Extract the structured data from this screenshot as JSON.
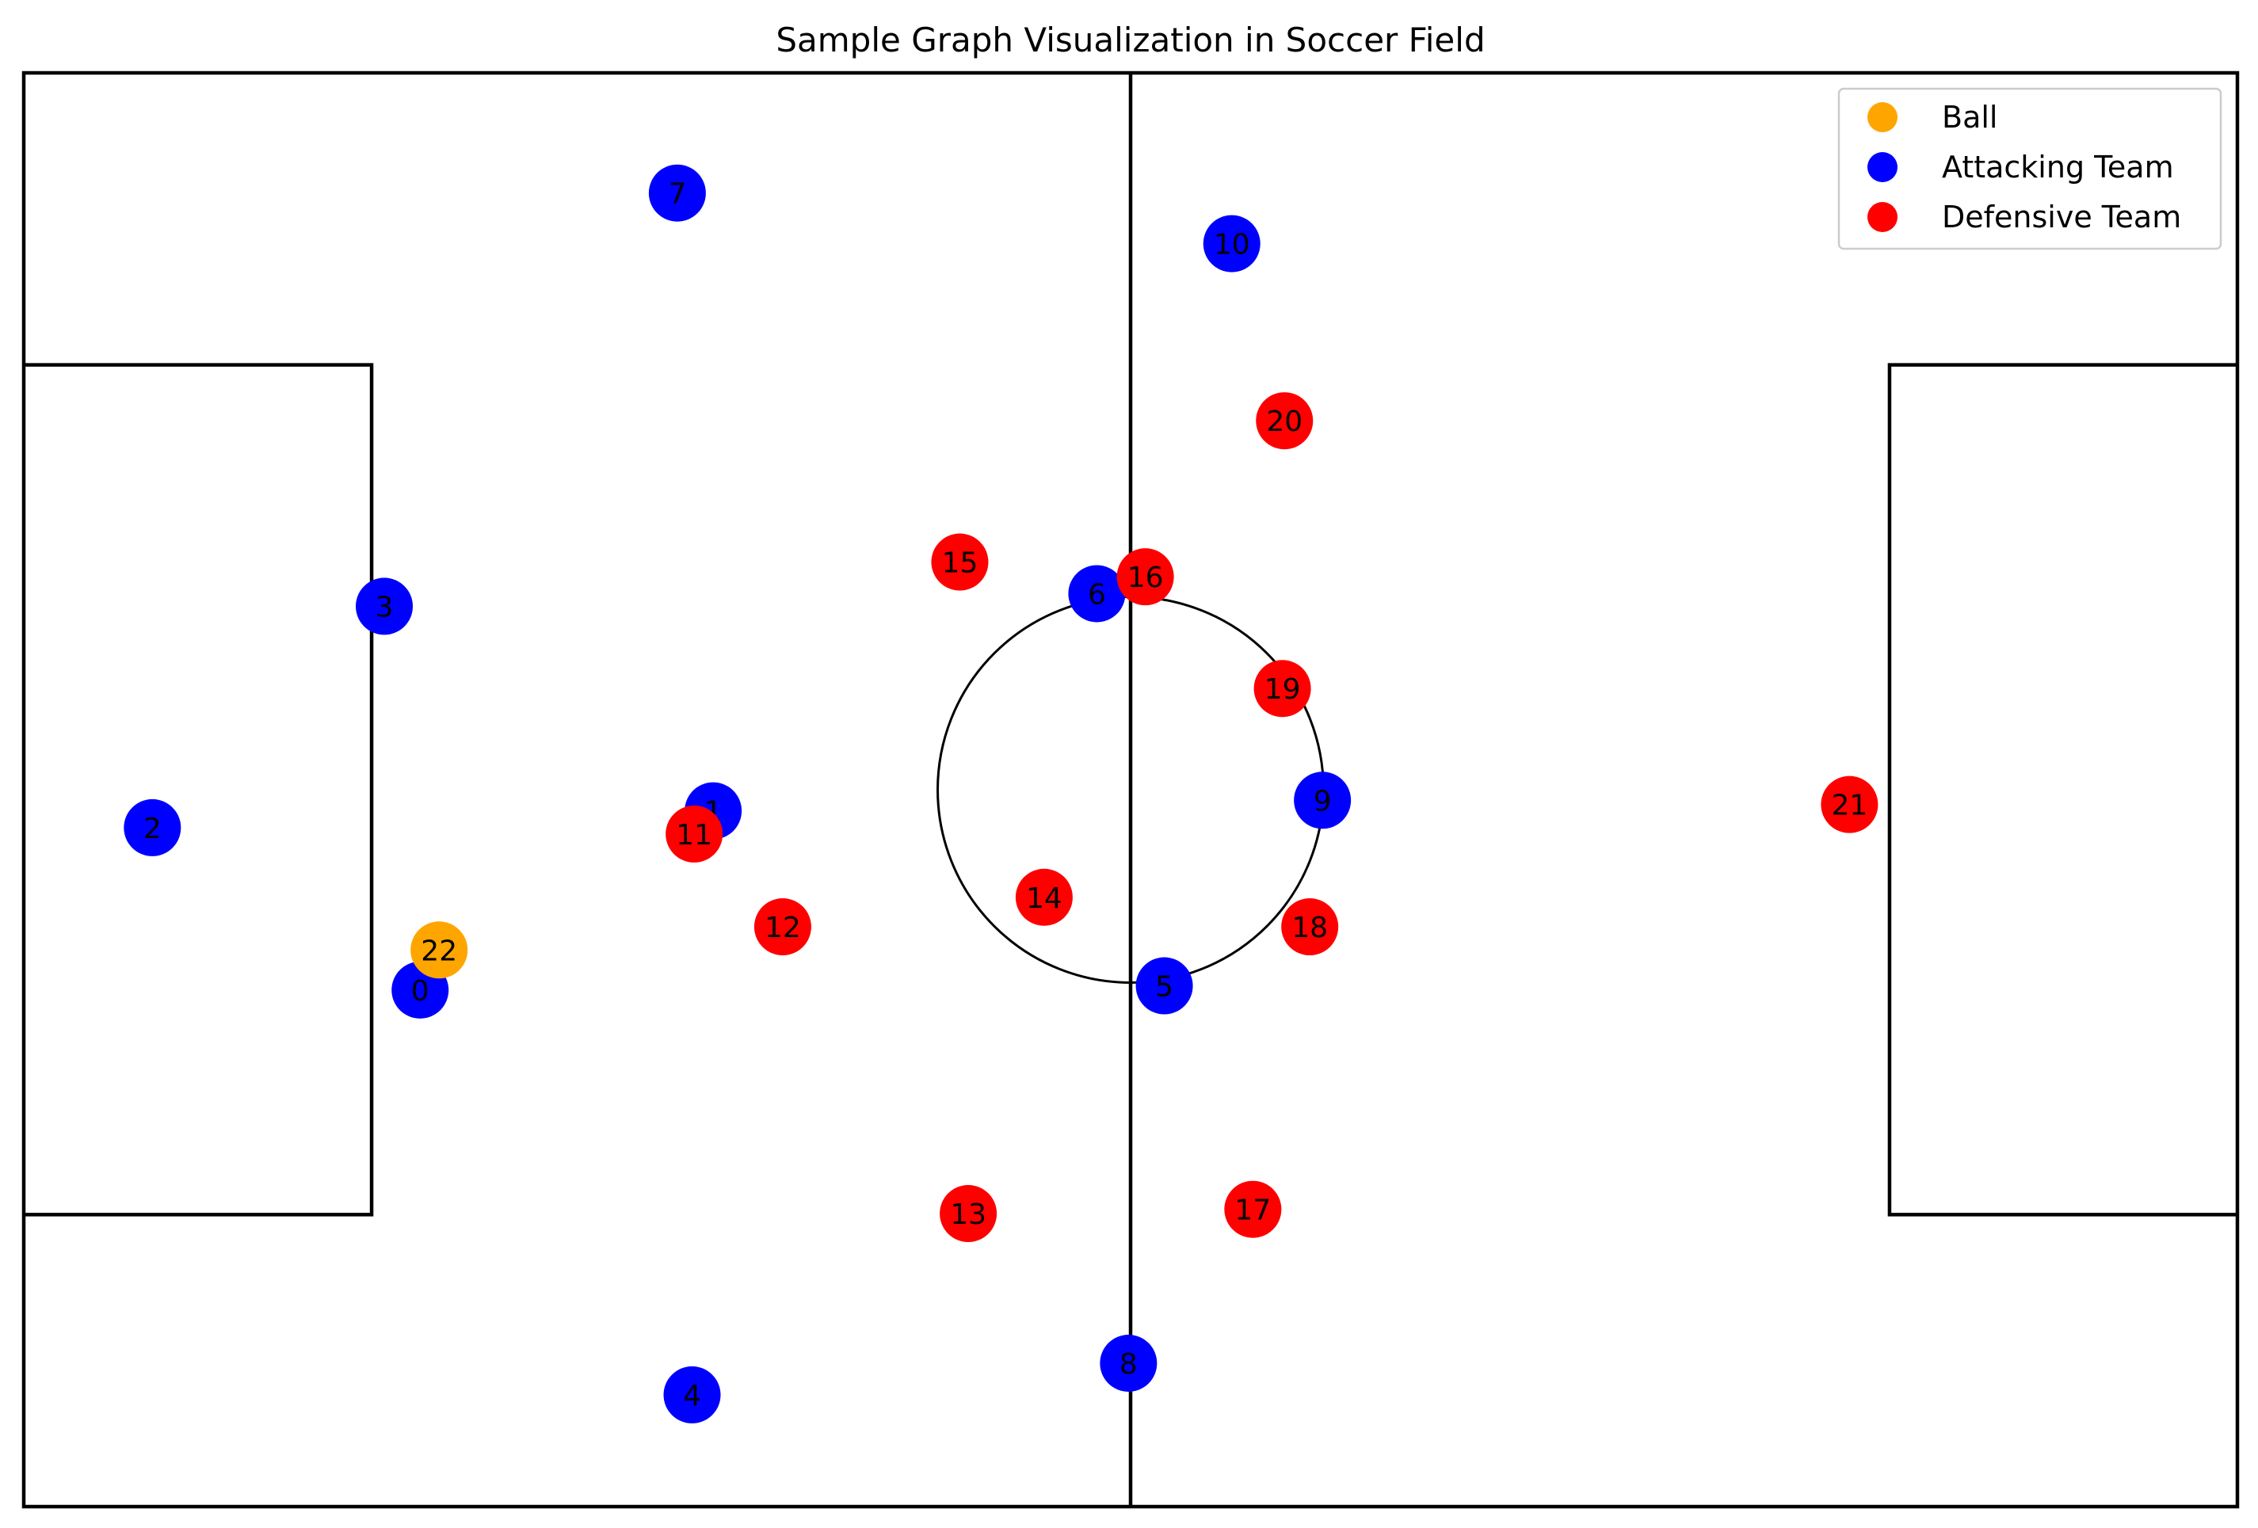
{
  "chart_data": {
    "type": "scatter",
    "title": "Sample Graph Visualization in Soccer Field",
    "xlabel": "",
    "ylabel": "",
    "xlim": [
      0,
      105
    ],
    "ylim": [
      0,
      68
    ],
    "grid": false,
    "axes_visible": false,
    "legend_placement": "top-right",
    "field": {
      "length": 105,
      "width": 68,
      "halfway_x": 52.5,
      "center_circle": {
        "cx": 52.5,
        "cy": 34,
        "r": 9.15
      },
      "penalty_boxes": [
        {
          "x0": 0,
          "x1": 16.5,
          "y0": 13.85,
          "y1": 54.15
        },
        {
          "x0": 88.5,
          "x1": 105,
          "y0": 13.85,
          "y1": 54.15
        }
      ]
    },
    "series": [
      {
        "name": "Ball",
        "color": "#FFA500",
        "points": [
          {
            "id": "22",
            "x": 19.7,
            "y": 26.4
          }
        ]
      },
      {
        "name": "Attacking Team",
        "color": "#0000FF",
        "points": [
          {
            "id": "0",
            "x": 18.8,
            "y": 24.5
          },
          {
            "id": "1",
            "x": 32.7,
            "y": 33.0
          },
          {
            "id": "2",
            "x": 6.1,
            "y": 32.2
          },
          {
            "id": "3",
            "x": 17.1,
            "y": 42.7
          },
          {
            "id": "4",
            "x": 31.7,
            "y": 5.3
          },
          {
            "id": "5",
            "x": 54.1,
            "y": 24.7
          },
          {
            "id": "6",
            "x": 50.9,
            "y": 43.3
          },
          {
            "id": "7",
            "x": 31.0,
            "y": 62.3
          },
          {
            "id": "8",
            "x": 52.4,
            "y": 6.8
          },
          {
            "id": "9",
            "x": 61.6,
            "y": 33.5
          },
          {
            "id": "10",
            "x": 57.3,
            "y": 59.9
          }
        ]
      },
      {
        "name": "Defensive Team",
        "color": "#FF0000",
        "points": [
          {
            "id": "11",
            "x": 31.8,
            "y": 31.9
          },
          {
            "id": "12",
            "x": 36.0,
            "y": 27.5
          },
          {
            "id": "13",
            "x": 44.8,
            "y": 13.9
          },
          {
            "id": "14",
            "x": 48.4,
            "y": 28.9
          },
          {
            "id": "15",
            "x": 44.4,
            "y": 44.8
          },
          {
            "id": "16",
            "x": 53.2,
            "y": 44.1
          },
          {
            "id": "17",
            "x": 58.3,
            "y": 14.1
          },
          {
            "id": "18",
            "x": 61.0,
            "y": 27.5
          },
          {
            "id": "19",
            "x": 59.7,
            "y": 38.8
          },
          {
            "id": "20",
            "x": 59.8,
            "y": 51.5
          },
          {
            "id": "21",
            "x": 86.6,
            "y": 33.3
          }
        ]
      }
    ],
    "legend": [
      {
        "label": "Ball",
        "color": "#FFA500"
      },
      {
        "label": "Attacking Team",
        "color": "#0000FF"
      },
      {
        "label": "Defensive Team",
        "color": "#FF0000"
      }
    ]
  }
}
